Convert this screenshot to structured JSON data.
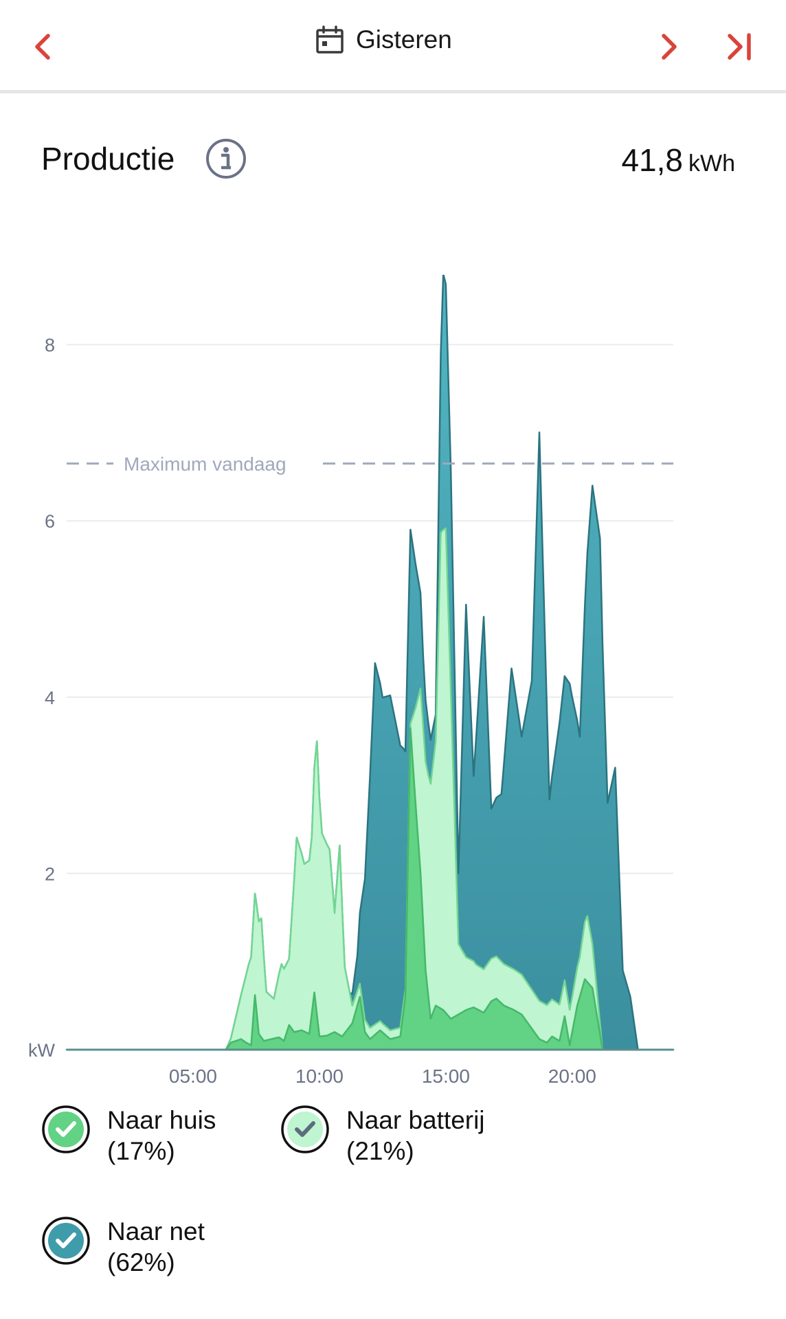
{
  "header": {
    "date_label": "Gisteren"
  },
  "section": {
    "title": "Productie",
    "total_value": "41,8",
    "total_unit": "kWh"
  },
  "colors": {
    "nav": "#d9443a",
    "house": "#62d284",
    "battery": "#bff5d1",
    "grid": "#3f9cab",
    "reference": "#a0a8bc",
    "axis_text": "#6b7287"
  },
  "chart_data": {
    "type": "area",
    "ylabel": "kW",
    "ylim": [
      0,
      8.6
    ],
    "yticks": [
      2,
      4,
      6,
      8
    ],
    "xlim": [
      0,
      24
    ],
    "xticks": [
      {
        "value": 5,
        "label": "05:00"
      },
      {
        "value": 10,
        "label": "10:00"
      },
      {
        "value": 15,
        "label": "15:00"
      },
      {
        "value": 20,
        "label": "20:00"
      }
    ],
    "reference_line": {
      "label": "Maximum vandaag",
      "value": 6.65
    },
    "stacked": true,
    "series": [
      {
        "name": "Naar huis",
        "percent": "(17%)",
        "icon": "house-check-icon",
        "points": [
          [
            0,
            0
          ],
          [
            6.3,
            0
          ],
          [
            6.5,
            0.08
          ],
          [
            6.7,
            0.1
          ],
          [
            6.9,
            0.12
          ],
          [
            7.1,
            0.08
          ],
          [
            7.3,
            0.05
          ],
          [
            7.45,
            0.62
          ],
          [
            7.6,
            0.18
          ],
          [
            7.8,
            0.1
          ],
          [
            8.1,
            0.12
          ],
          [
            8.4,
            0.14
          ],
          [
            8.6,
            0.1
          ],
          [
            8.8,
            0.28
          ],
          [
            9.0,
            0.2
          ],
          [
            9.3,
            0.22
          ],
          [
            9.6,
            0.18
          ],
          [
            9.8,
            0.65
          ],
          [
            10.0,
            0.15
          ],
          [
            10.3,
            0.16
          ],
          [
            10.6,
            0.2
          ],
          [
            10.9,
            0.15
          ],
          [
            11.3,
            0.3
          ],
          [
            11.6,
            0.6
          ],
          [
            11.8,
            0.2
          ],
          [
            12.0,
            0.12
          ],
          [
            12.4,
            0.22
          ],
          [
            12.8,
            0.12
          ],
          [
            13.2,
            0.15
          ],
          [
            13.4,
            0.6
          ],
          [
            13.6,
            3.65
          ],
          [
            13.8,
            2.8
          ],
          [
            14.0,
            2.0
          ],
          [
            14.2,
            0.9
          ],
          [
            14.4,
            0.35
          ],
          [
            14.6,
            0.5
          ],
          [
            14.9,
            0.45
          ],
          [
            15.2,
            0.35
          ],
          [
            15.5,
            0.4
          ],
          [
            15.8,
            0.45
          ],
          [
            16.1,
            0.48
          ],
          [
            16.5,
            0.42
          ],
          [
            16.8,
            0.55
          ],
          [
            17.0,
            0.58
          ],
          [
            17.3,
            0.5
          ],
          [
            17.7,
            0.45
          ],
          [
            18.0,
            0.4
          ],
          [
            18.3,
            0.28
          ],
          [
            18.7,
            0.12
          ],
          [
            19.0,
            0.08
          ],
          [
            19.2,
            0.15
          ],
          [
            19.5,
            0.1
          ],
          [
            19.7,
            0.38
          ],
          [
            19.9,
            0.05
          ],
          [
            20.2,
            0.5
          ],
          [
            20.5,
            0.8
          ],
          [
            20.8,
            0.7
          ],
          [
            21.2,
            0
          ],
          [
            24,
            0
          ]
        ]
      },
      {
        "name": "Naar batterij",
        "percent": "(21%)",
        "icon": "battery-check-icon",
        "points": [
          [
            0,
            0
          ],
          [
            6.3,
            0
          ],
          [
            6.5,
            0.05
          ],
          [
            6.9,
            0.5
          ],
          [
            7.2,
            0.9
          ],
          [
            7.5,
            1.2
          ],
          [
            7.7,
            1.35
          ],
          [
            7.9,
            0.55
          ],
          [
            8.2,
            0.45
          ],
          [
            8.5,
            0.85
          ],
          [
            8.8,
            0.75
          ],
          [
            9.1,
            2.2
          ],
          [
            9.4,
            1.9
          ],
          [
            9.7,
            2.0
          ],
          [
            9.9,
            3.1
          ],
          [
            10.1,
            2.3
          ],
          [
            10.4,
            2.1
          ],
          [
            10.6,
            1.35
          ],
          [
            10.8,
            2.15
          ],
          [
            11.0,
            0.75
          ],
          [
            11.3,
            0.2
          ],
          [
            11.6,
            0.15
          ],
          [
            12.5,
            0.1
          ],
          [
            13.3,
            0.1
          ],
          [
            13.6,
            0.05
          ],
          [
            14.0,
            2.1
          ],
          [
            14.3,
            2.5
          ],
          [
            14.6,
            3.0
          ],
          [
            14.8,
            5.4
          ],
          [
            15.0,
            5.5
          ],
          [
            15.2,
            3.7
          ],
          [
            15.5,
            0.8
          ],
          [
            15.8,
            0.6
          ],
          [
            16.2,
            0.5
          ],
          [
            20.0,
            0.4
          ],
          [
            20.3,
            0.45
          ],
          [
            20.6,
            0.75
          ],
          [
            21.2,
            0
          ],
          [
            24,
            0
          ]
        ]
      },
      {
        "name": "Naar net",
        "percent": "(62%)",
        "icon": "grid-check-icon",
        "points": [
          [
            0,
            0
          ],
          [
            11.2,
            0
          ],
          [
            11.5,
            0.4
          ],
          [
            11.8,
            1.6
          ],
          [
            12.2,
            4.1
          ],
          [
            12.5,
            3.7
          ],
          [
            12.8,
            3.8
          ],
          [
            13.2,
            3.2
          ],
          [
            13.6,
            2.2
          ],
          [
            14.1,
            0.8
          ],
          [
            14.6,
            0.3
          ],
          [
            14.9,
            2.9
          ],
          [
            15.2,
            2.5
          ],
          [
            15.5,
            0.8
          ],
          [
            15.8,
            4.0
          ],
          [
            16.1,
            2.1
          ],
          [
            16.5,
            4.0
          ],
          [
            16.8,
            1.7
          ],
          [
            17.2,
            1.9
          ],
          [
            17.6,
            3.4
          ],
          [
            18.0,
            2.7
          ],
          [
            18.4,
            3.5
          ],
          [
            18.7,
            6.45
          ],
          [
            19.1,
            2.3
          ],
          [
            19.5,
            3.2
          ],
          [
            19.9,
            3.7
          ],
          [
            20.3,
            2.5
          ],
          [
            20.8,
            5.2
          ],
          [
            21.1,
            5.5
          ],
          [
            21.4,
            2.8
          ],
          [
            21.7,
            3.2
          ],
          [
            22.0,
            0.9
          ],
          [
            22.3,
            0.6
          ],
          [
            22.6,
            0
          ],
          [
            24,
            0
          ]
        ]
      }
    ]
  }
}
